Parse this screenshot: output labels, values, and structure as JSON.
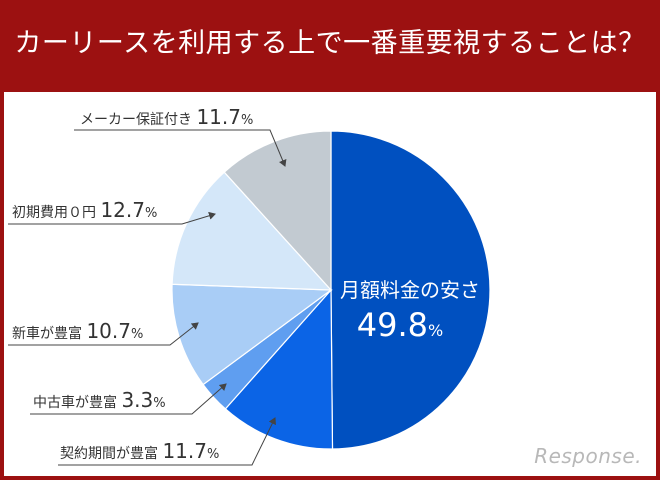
{
  "chart_data": {
    "type": "pie",
    "title": "カーリースを利用する上で一番重要視することは？",
    "slices": [
      {
        "label": "月額料金の安さ",
        "value": 49.8,
        "color": "#0050c0"
      },
      {
        "label": "契約期間が豊富",
        "value": 11.7,
        "color": "#0b64e6"
      },
      {
        "label": "中古車が豊富",
        "value": 3.3,
        "color": "#5f9ef0"
      },
      {
        "label": "新車が豊富",
        "value": 10.7,
        "color": "#a9cdf6"
      },
      {
        "label": "初期費用０円",
        "value": 12.7,
        "color": "#d4e7f9"
      },
      {
        "label": "メーカー保証付き",
        "value": 11.7,
        "color": "#c2cad1"
      }
    ],
    "unit": "%",
    "start": "top",
    "direction": "clockwise"
  },
  "watermark": "Response."
}
